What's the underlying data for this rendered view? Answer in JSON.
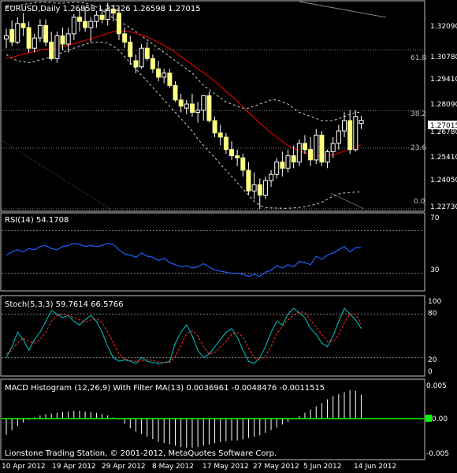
{
  "colors": {
    "background": "#000000",
    "frame": "#c0c0c0",
    "text": "#ffffff",
    "candle_up": "#000000",
    "candle_down": "#ffff80",
    "wick": "#ffffff",
    "ma": "#ff0000",
    "bands": "#d0d0d0",
    "rsi": "#1e60ff",
    "stoch_main": "#00c8c8",
    "stoch_signal": "#ff3030",
    "macd_hist": "#ffffff",
    "macd_zero": "#00ff00",
    "price_tag_bg": "#ffffff",
    "price_tag_text": "#000000"
  },
  "main_panel": {
    "title": "EURUSD,Daily  1.26858 1.27226 1.26598 1.27015",
    "price_axis_labels": [
      "1.32090",
      "1.30780",
      "1.29410",
      "1.28090",
      "1.26780",
      "1.25410",
      "1.24050",
      "1.22730"
    ],
    "current_price": "1.27015",
    "fibo_levels": [
      "61.8",
      "38.2",
      "23.6",
      "0.0"
    ],
    "footer": "Lionstone Trading Station, © 2001-2012, MetaQuotes Software Corp."
  },
  "rsi_panel": {
    "title": "RSI(14) 54.1708",
    "axis_labels": [
      "70",
      "30"
    ]
  },
  "stoch_panel": {
    "title": "Stoch(5,3,3) 59.7614 66.5766",
    "axis_labels": [
      "100",
      "80",
      "20",
      "0"
    ]
  },
  "macd_panel": {
    "title": "MACD Histogram (12,26,9) With Filter MA(13) 0.0036961 -0.0048476 -0.0011515",
    "axis_labels": [
      "0.005",
      "0.00",
      "-0.005"
    ]
  },
  "time_axis_labels": [
    "10 Apr 2012",
    "19 Apr 2012",
    "29 Apr 2012",
    "8 May 2012",
    "17 May 2012",
    "27 May 2012",
    "5 Jun 2012",
    "14 Jun 2012"
  ],
  "chart_data": [
    {
      "type": "candlestick",
      "symbol": "EURUSD",
      "timeframe": "Daily",
      "ylim": [
        1.2273,
        1.3272
      ],
      "ohlc": [
        [
          1.3095,
          1.3145,
          1.305,
          1.311
        ],
        [
          1.314,
          1.3185,
          1.306,
          1.308
        ],
        [
          1.308,
          1.32,
          1.307,
          1.317
        ],
        [
          1.317,
          1.322,
          1.311,
          1.315
        ],
        [
          1.315,
          1.318,
          1.303,
          1.305
        ],
        [
          1.305,
          1.312,
          1.303,
          1.31
        ],
        [
          1.31,
          1.319,
          1.308,
          1.316
        ],
        [
          1.316,
          1.319,
          1.306,
          1.308
        ],
        [
          1.308,
          1.313,
          1.299,
          1.3
        ],
        [
          1.3,
          1.313,
          1.298,
          1.311
        ],
        [
          1.311,
          1.315,
          1.304,
          1.307
        ],
        [
          1.307,
          1.315,
          1.303,
          1.312
        ],
        [
          1.312,
          1.3215,
          1.309,
          1.32
        ],
        [
          1.32,
          1.324,
          1.313,
          1.318
        ],
        [
          1.318,
          1.325,
          1.313,
          1.315
        ],
        [
          1.315,
          1.32,
          1.308,
          1.318
        ],
        [
          1.318,
          1.323,
          1.315,
          1.321
        ],
        [
          1.321,
          1.324,
          1.317,
          1.319
        ],
        [
          1.319,
          1.327,
          1.316,
          1.324
        ],
        [
          1.324,
          1.326,
          1.318,
          1.322
        ],
        [
          1.322,
          1.325,
          1.309,
          1.312
        ],
        [
          1.312,
          1.315,
          1.305,
          1.308
        ],
        [
          1.308,
          1.311,
          1.297,
          1.301
        ],
        [
          1.299,
          1.302,
          1.293,
          1.296
        ],
        [
          1.296,
          1.307,
          1.295,
          1.305
        ],
        [
          1.305,
          1.308,
          1.299,
          1.3
        ],
        [
          1.3,
          1.302,
          1.293,
          1.295
        ],
        [
          1.295,
          1.299,
          1.289,
          1.291
        ],
        [
          1.291,
          1.295,
          1.288,
          1.293
        ],
        [
          1.293,
          1.295,
          1.286,
          1.287
        ],
        [
          1.287,
          1.289,
          1.279,
          1.28
        ],
        [
          1.28,
          1.283,
          1.274,
          1.277
        ],
        [
          1.276,
          1.28,
          1.273,
          1.278
        ],
        [
          1.278,
          1.283,
          1.272,
          1.274
        ],
        [
          1.274,
          1.279,
          1.269,
          1.275
        ],
        [
          1.275,
          1.282,
          1.27,
          1.282
        ],
        [
          1.282,
          1.284,
          1.269,
          1.27
        ],
        [
          1.27,
          1.272,
          1.262,
          1.264
        ],
        [
          1.264,
          1.268,
          1.258,
          1.262
        ],
        [
          1.262,
          1.264,
          1.254,
          1.256
        ],
        [
          1.256,
          1.26,
          1.251,
          1.253
        ],
        [
          1.253,
          1.256,
          1.248,
          1.252
        ],
        [
          1.252,
          1.254,
          1.243,
          1.246
        ],
        [
          1.246,
          1.25,
          1.234,
          1.236
        ],
        [
          1.236,
          1.245,
          1.232,
          1.239
        ],
        [
          1.239,
          1.242,
          1.2273,
          1.234
        ],
        [
          1.234,
          1.243,
          1.232,
          1.241
        ],
        [
          1.241,
          1.246,
          1.238,
          1.244
        ],
        [
          1.244,
          1.252,
          1.242,
          1.25
        ],
        [
          1.25,
          1.255,
          1.243,
          1.247
        ],
        [
          1.247,
          1.256,
          1.245,
          1.253
        ],
        [
          1.253,
          1.258,
          1.247,
          1.25
        ],
        [
          1.25,
          1.261,
          1.248,
          1.259
        ],
        [
          1.259,
          1.263,
          1.254,
          1.256
        ],
        [
          1.256,
          1.262,
          1.248,
          1.251
        ],
        [
          1.251,
          1.266,
          1.249,
          1.263
        ],
        [
          1.263,
          1.265,
          1.248,
          1.25
        ],
        [
          1.25,
          1.256,
          1.247,
          1.255
        ],
        [
          1.255,
          1.262,
          1.252,
          1.259
        ],
        [
          1.259,
          1.268,
          1.256,
          1.265
        ],
        [
          1.265,
          1.274,
          1.262,
          1.27
        ],
        [
          1.27,
          1.275,
          1.254,
          1.256
        ],
        [
          1.256,
          1.275,
          1.255,
          1.272
        ],
        [
          1.26858,
          1.27226,
          1.26598,
          1.27015
        ]
      ],
      "ma": [
        1.3,
        1.3006,
        1.3014,
        1.3022,
        1.3028,
        1.3034,
        1.3042,
        1.3046,
        1.3048,
        1.3054,
        1.3058,
        1.3064,
        1.3072,
        1.308,
        1.3088,
        1.3096,
        1.3105,
        1.3112,
        1.3122,
        1.313,
        1.3134,
        1.3134,
        1.313,
        1.3122,
        1.3114,
        1.3104,
        1.3092,
        1.3078,
        1.3064,
        1.3048,
        1.303,
        1.301,
        1.299,
        1.297,
        1.295,
        1.2932,
        1.2912,
        1.289,
        1.2866,
        1.2842,
        1.2818,
        1.2794,
        1.2768,
        1.274,
        1.2714,
        1.2688,
        1.2664,
        1.264,
        1.262,
        1.26,
        1.258,
        1.2566,
        1.2554,
        1.2544,
        1.2536,
        1.2532,
        1.2528,
        1.253,
        1.2534,
        1.2542,
        1.2552,
        1.2562,
        1.2572,
        1.2582
      ],
      "upper_band": [
        1.325,
        1.3252,
        1.3256,
        1.3262,
        1.3266,
        1.327,
        1.3272,
        1.3272,
        1.327,
        1.3268,
        1.3268,
        1.327,
        1.3272,
        1.3272,
        1.3268,
        1.3262,
        1.325,
        1.3235,
        1.3215,
        1.3195,
        1.318,
        1.3166,
        1.315,
        1.313,
        1.311,
        1.309,
        1.307,
        1.305,
        1.303,
        1.301,
        1.299,
        1.297,
        1.295,
        1.293,
        1.29,
        1.287,
        1.285,
        1.283,
        1.281,
        1.279,
        1.278,
        1.277,
        1.276,
        1.276,
        1.277,
        1.278,
        1.279,
        1.28,
        1.28,
        1.279,
        1.278,
        1.276,
        1.274,
        1.273,
        1.272,
        1.271,
        1.27,
        1.27,
        1.27,
        1.271,
        1.272,
        1.273,
        1.274,
        1.274
      ],
      "lower_band": [
        1.302,
        1.3,
        1.299,
        1.2985,
        1.298,
        1.2985,
        1.2995,
        1.3,
        1.301,
        1.302,
        1.303,
        1.304,
        1.305,
        1.306,
        1.307,
        1.3075,
        1.308,
        1.308,
        1.3075,
        1.306,
        1.304,
        1.301,
        1.298,
        1.295,
        1.292,
        1.289,
        1.286,
        1.283,
        1.28,
        1.277,
        1.274,
        1.271,
        1.268,
        1.265,
        1.261,
        1.258,
        1.255,
        1.252,
        1.249,
        1.246,
        1.243,
        1.24,
        1.237,
        1.234,
        1.231,
        1.229,
        1.228,
        1.2278,
        1.2277,
        1.2276,
        1.2276,
        1.2278,
        1.228,
        1.2284,
        1.229,
        1.2296,
        1.2305,
        1.232,
        1.2335,
        1.2345,
        1.235,
        1.2352,
        1.2355,
        1.2355
      ],
      "fibonacci": {
        "0.0": 1.2273,
        "23.6": 1.2567,
        "38.2": 1.2749,
        "61.8": 1.3043
      }
    },
    {
      "type": "line",
      "name": "RSI(14)",
      "ylim": [
        15,
        85
      ],
      "levels": [
        70,
        30
      ],
      "values": [
        47,
        50,
        52,
        50,
        53,
        52,
        55,
        56,
        53,
        52,
        55,
        56,
        58,
        57,
        55,
        56,
        55,
        56,
        58,
        57,
        52,
        48,
        47,
        45,
        49,
        46,
        45,
        42,
        44,
        40,
        38,
        36,
        37,
        35,
        36,
        39,
        36,
        33,
        32,
        31,
        30,
        30,
        29,
        27,
        29,
        27,
        31,
        33,
        37,
        35,
        38,
        36,
        41,
        40,
        38,
        46,
        43,
        47,
        49,
        52,
        55,
        50,
        54,
        54
      ]
    },
    {
      "type": "line",
      "name": "Stoch(5,3,3)",
      "ylim": [
        0,
        100
      ],
      "levels": [
        80,
        20
      ],
      "main": [
        20,
        35,
        55,
        45,
        30,
        45,
        55,
        70,
        85,
        80,
        75,
        78,
        70,
        65,
        72,
        78,
        70,
        55,
        35,
        20,
        15,
        17,
        15,
        12,
        20,
        15,
        13,
        12,
        13,
        15,
        40,
        55,
        65,
        50,
        30,
        20,
        25,
        35,
        45,
        55,
        60,
        48,
        30,
        15,
        12,
        20,
        35,
        55,
        70,
        65,
        80,
        88,
        82,
        75,
        60,
        52,
        40,
        35,
        50,
        70,
        88,
        80,
        72,
        60
      ],
      "signal": [
        25,
        30,
        40,
        47,
        42,
        40,
        45,
        55,
        70,
        78,
        80,
        78,
        75,
        72,
        69,
        72,
        74,
        68,
        55,
        40,
        25,
        18,
        16,
        15,
        15,
        17,
        16,
        14,
        13,
        13,
        22,
        37,
        53,
        57,
        50,
        35,
        25,
        27,
        35,
        42,
        52,
        55,
        48,
        33,
        20,
        17,
        22,
        35,
        53,
        63,
        72,
        78,
        83,
        82,
        72,
        62,
        52,
        42,
        42,
        52,
        68,
        80,
        80,
        66
      ]
    },
    {
      "type": "bar",
      "name": "MACD Histogram (12,26,9)",
      "ylim": [
        -0.0055,
        0.0055
      ],
      "values": [
        -0.0025,
        -0.0018,
        -0.0012,
        -0.0006,
        -0.0002,
        0.0002,
        0.0005,
        0.0007,
        0.0008,
        0.0009,
        0.001,
        0.0011,
        0.0012,
        0.0012,
        0.0011,
        0.001,
        0.0009,
        0.0007,
        0.0005,
        0.0002,
        -0.0001,
        -0.0008,
        -0.0015,
        -0.002,
        -0.0024,
        -0.0028,
        -0.0032,
        -0.0036,
        -0.0038,
        -0.004,
        -0.0042,
        -0.0044,
        -0.0045,
        -0.0045,
        -0.0044,
        -0.0042,
        -0.004,
        -0.0038,
        -0.0036,
        -0.0035,
        -0.0034,
        -0.0034,
        -0.0032,
        -0.003,
        -0.0028,
        -0.0026,
        -0.0022,
        -0.0018,
        -0.0014,
        -0.0009,
        -0.0005,
        0.0,
        0.0004,
        0.0009,
        0.0014,
        0.0019,
        0.0024,
        0.003,
        0.0035,
        0.0038,
        0.0041,
        0.0044,
        0.0043,
        0.0037
      ]
    }
  ]
}
